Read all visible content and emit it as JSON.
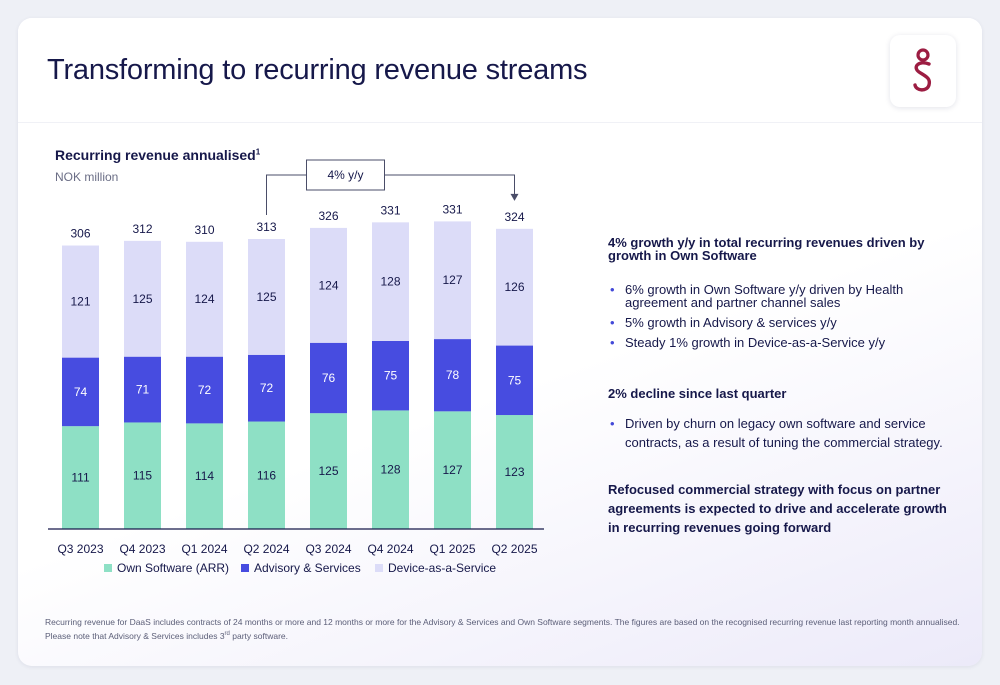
{
  "page": {
    "title": "Transforming to recurring revenue streams",
    "logo_icon": "company-logo-icon"
  },
  "colors": {
    "own_software": "#8ee0c5",
    "advisory": "#474ce0",
    "daas": "#dcdcf8",
    "text": "#16184a",
    "bullet": "#4349d8"
  },
  "chart_data": {
    "type": "bar",
    "stacked": true,
    "title": "Recurring revenue annualised",
    "title_superscript": "1",
    "unit": "NOK million",
    "categories": [
      "Q3 2023",
      "Q4 2023",
      "Q1 2024",
      "Q2 2024",
      "Q3 2024",
      "Q4 2024",
      "Q1 2025",
      "Q2 2025"
    ],
    "series": [
      {
        "name": "Own Software (ARR)",
        "values": [
          111,
          115,
          114,
          116,
          125,
          128,
          127,
          123
        ]
      },
      {
        "name": "Advisory & Services",
        "values": [
          74,
          71,
          72,
          72,
          76,
          75,
          78,
          75
        ]
      },
      {
        "name": "Device-as-a-Service",
        "values": [
          121,
          125,
          124,
          125,
          124,
          128,
          127,
          126
        ]
      }
    ],
    "totals": [
      306,
      312,
      310,
      313,
      326,
      331,
      331,
      324
    ],
    "ylim": [
      0,
      340
    ],
    "legend_position": "bottom",
    "grid": false,
    "annotation": {
      "label": "4% y/y",
      "from": "Q2 2024",
      "to": "Q2 2025"
    }
  },
  "panel": {
    "block1": {
      "heading": "4% growth y/y in total recurring revenues driven by growth in Own Software",
      "bullets": [
        "6% growth in Own Software y/y driven by Health agreement and partner channel sales",
        "5% growth in Advisory & services y/y",
        "Steady 1% growth in Device-as-a-Service y/y"
      ]
    },
    "block2": {
      "heading": "2% decline since last quarter",
      "bullets": [
        "Driven by churn on legacy own software and service contracts, as a result of tuning the commercial strategy."
      ]
    },
    "block3": {
      "heading": "Refocused commercial strategy with focus on partner agreements is expected to drive and accelerate growth in recurring revenues going forward"
    }
  },
  "footnote": {
    "line1": "Recurring revenue for DaaS includes contracts of 24 months or more  and 12 months or more for the Advisory & Services and Own Software segments. The figures are based on the recognised recurring revenue last reporting month  annualised.",
    "line2_pre": "Please note that Advisory & Services includes 3",
    "line2_sup": "rd",
    "line2_post": " party software."
  }
}
